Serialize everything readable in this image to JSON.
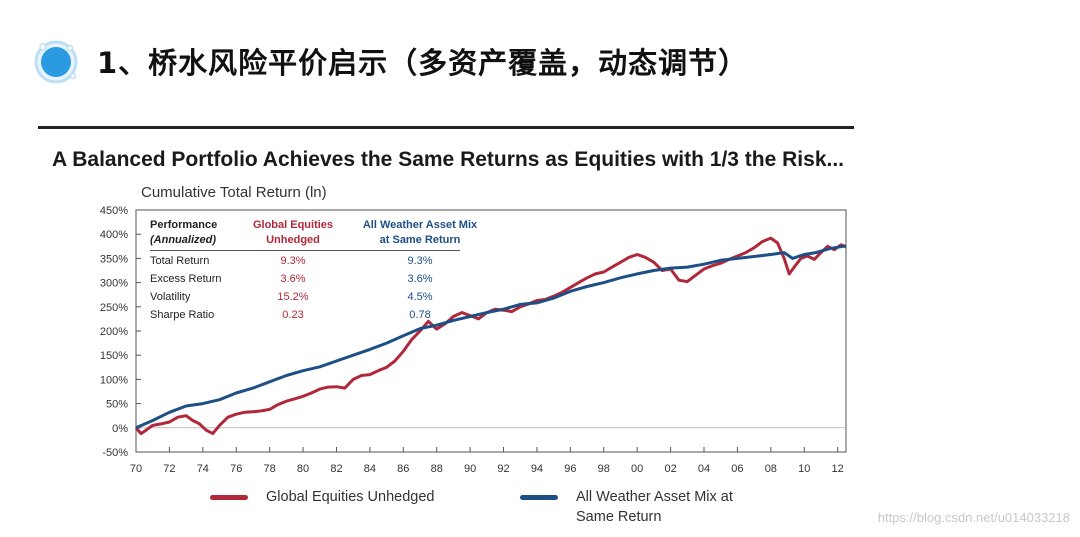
{
  "slide": {
    "title": "1、桥水风险平价启示（多资产覆盖，动态调节）",
    "watermark": "https://blog.csdn.net/u014033218"
  },
  "colors": {
    "equities": "#b0283a",
    "all_weather": "#1d4f86",
    "bullet": "#2a9be0"
  },
  "chart_data": {
    "type": "line",
    "title": "A Balanced Portfolio Achieves the Same Returns as Equities with 1/3 the Risk...",
    "ylabel": "Cumulative Total Return (ln)",
    "xlabel": "",
    "xlim": [
      1970,
      2012.5
    ],
    "ylim": [
      -50,
      450
    ],
    "x_tick_labels": [
      "70",
      "72",
      "74",
      "76",
      "78",
      "80",
      "82",
      "84",
      "86",
      "88",
      "90",
      "92",
      "94",
      "96",
      "98",
      "00",
      "02",
      "04",
      "06",
      "08",
      "10",
      "12"
    ],
    "y_tick_labels": [
      "450%",
      "400%",
      "350%",
      "300%",
      "250%",
      "200%",
      "150%",
      "100%",
      "50%",
      "0%",
      "-50%"
    ],
    "grid": false,
    "legend_position": "bottom",
    "series": [
      {
        "name": "Global Equities Unhedged",
        "color": "#b0283a",
        "points": [
          [
            1970.0,
            0
          ],
          [
            1970.3,
            -12
          ],
          [
            1970.6,
            -5
          ],
          [
            1971.0,
            5
          ],
          [
            1971.5,
            8
          ],
          [
            1972.0,
            12
          ],
          [
            1972.5,
            22
          ],
          [
            1973.0,
            25
          ],
          [
            1973.4,
            15
          ],
          [
            1973.8,
            8
          ],
          [
            1974.2,
            -5
          ],
          [
            1974.6,
            -12
          ],
          [
            1975.0,
            5
          ],
          [
            1975.5,
            22
          ],
          [
            1976.0,
            28
          ],
          [
            1976.5,
            32
          ],
          [
            1977.0,
            33
          ],
          [
            1977.5,
            35
          ],
          [
            1978.0,
            38
          ],
          [
            1978.5,
            48
          ],
          [
            1979.0,
            55
          ],
          [
            1979.5,
            60
          ],
          [
            1980.0,
            65
          ],
          [
            1980.5,
            72
          ],
          [
            1981.0,
            80
          ],
          [
            1981.5,
            84
          ],
          [
            1982.0,
            85
          ],
          [
            1982.5,
            82
          ],
          [
            1983.0,
            100
          ],
          [
            1983.5,
            108
          ],
          [
            1984.0,
            110
          ],
          [
            1984.5,
            118
          ],
          [
            1985.0,
            125
          ],
          [
            1985.5,
            138
          ],
          [
            1986.0,
            158
          ],
          [
            1986.5,
            182
          ],
          [
            1987.0,
            200
          ],
          [
            1987.5,
            220
          ],
          [
            1987.8,
            210
          ],
          [
            1988.0,
            204
          ],
          [
            1988.5,
            215
          ],
          [
            1989.0,
            230
          ],
          [
            1989.5,
            238
          ],
          [
            1990.0,
            232
          ],
          [
            1990.5,
            225
          ],
          [
            1991.0,
            238
          ],
          [
            1991.5,
            245
          ],
          [
            1992.0,
            243
          ],
          [
            1992.5,
            240
          ],
          [
            1993.0,
            250
          ],
          [
            1993.5,
            256
          ],
          [
            1994.0,
            263
          ],
          [
            1994.5,
            265
          ],
          [
            1995.0,
            272
          ],
          [
            1995.5,
            280
          ],
          [
            1996.0,
            290
          ],
          [
            1996.5,
            300
          ],
          [
            1997.0,
            310
          ],
          [
            1997.5,
            318
          ],
          [
            1998.0,
            322
          ],
          [
            1998.5,
            332
          ],
          [
            1999.0,
            342
          ],
          [
            1999.5,
            352
          ],
          [
            2000.0,
            358
          ],
          [
            2000.5,
            352
          ],
          [
            2001.0,
            342
          ],
          [
            2001.5,
            325
          ],
          [
            2002.0,
            328
          ],
          [
            2002.5,
            305
          ],
          [
            2003.0,
            302
          ],
          [
            2003.5,
            315
          ],
          [
            2004.0,
            328
          ],
          [
            2004.5,
            335
          ],
          [
            2005.0,
            340
          ],
          [
            2005.5,
            348
          ],
          [
            2006.0,
            355
          ],
          [
            2006.5,
            362
          ],
          [
            2007.0,
            372
          ],
          [
            2007.5,
            385
          ],
          [
            2008.0,
            392
          ],
          [
            2008.4,
            382
          ],
          [
            2008.8,
            350
          ],
          [
            2009.1,
            318
          ],
          [
            2009.4,
            332
          ],
          [
            2009.8,
            350
          ],
          [
            2010.2,
            355
          ],
          [
            2010.6,
            348
          ],
          [
            2011.0,
            362
          ],
          [
            2011.4,
            375
          ],
          [
            2011.8,
            368
          ],
          [
            2012.2,
            378
          ],
          [
            2012.5,
            374
          ]
        ]
      },
      {
        "name": "All Weather Asset Mix at Same Return",
        "color": "#1d4f86",
        "points": [
          [
            1970.0,
            0
          ],
          [
            1971.0,
            15
          ],
          [
            1972.0,
            32
          ],
          [
            1973.0,
            45
          ],
          [
            1974.0,
            50
          ],
          [
            1975.0,
            58
          ],
          [
            1976.0,
            72
          ],
          [
            1977.0,
            82
          ],
          [
            1978.0,
            95
          ],
          [
            1979.0,
            108
          ],
          [
            1980.0,
            118
          ],
          [
            1981.0,
            126
          ],
          [
            1982.0,
            138
          ],
          [
            1983.0,
            150
          ],
          [
            1984.0,
            162
          ],
          [
            1985.0,
            175
          ],
          [
            1986.0,
            190
          ],
          [
            1987.0,
            205
          ],
          [
            1988.0,
            212
          ],
          [
            1989.0,
            222
          ],
          [
            1990.0,
            230
          ],
          [
            1991.0,
            238
          ],
          [
            1992.0,
            245
          ],
          [
            1993.0,
            255
          ],
          [
            1994.0,
            258
          ],
          [
            1995.0,
            268
          ],
          [
            1996.0,
            282
          ],
          [
            1997.0,
            292
          ],
          [
            1998.0,
            300
          ],
          [
            1999.0,
            310
          ],
          [
            2000.0,
            318
          ],
          [
            2001.0,
            325
          ],
          [
            2002.0,
            330
          ],
          [
            2003.0,
            332
          ],
          [
            2004.0,
            338
          ],
          [
            2005.0,
            346
          ],
          [
            2006.0,
            350
          ],
          [
            2007.0,
            354
          ],
          [
            2008.0,
            358
          ],
          [
            2008.8,
            362
          ],
          [
            2009.3,
            350
          ],
          [
            2010.0,
            358
          ],
          [
            2010.7,
            362
          ],
          [
            2011.5,
            370
          ],
          [
            2012.5,
            376
          ]
        ]
      }
    ],
    "table": {
      "headers": [
        [
          "Performance",
          "(Annualized)"
        ],
        [
          "Global Equities",
          "Unhedged"
        ],
        [
          "All Weather Asset Mix",
          "at Same Return"
        ]
      ],
      "rows": [
        {
          "label": "Total Return",
          "equities": "9.3%",
          "all_weather": "9.3%"
        },
        {
          "label": "Excess Return",
          "equities": "3.6%",
          "all_weather": "3.6%"
        },
        {
          "label": "Volatility",
          "equities": "15.2%",
          "all_weather": "4.5%"
        },
        {
          "label": "Sharpe Ratio",
          "equities": "0.23",
          "all_weather": "0.78"
        }
      ]
    }
  },
  "legend": {
    "equities_label": "Global Equities Unhedged",
    "all_weather_line1": "All Weather Asset Mix at",
    "all_weather_line2": "Same Return"
  }
}
